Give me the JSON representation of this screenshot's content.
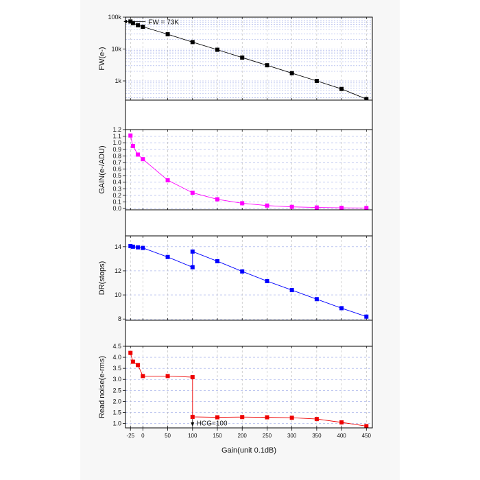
{
  "chart_data": [
    {
      "type": "line",
      "panel": "fw",
      "title": "",
      "xlabel": "Gain(unit 0.1dB)",
      "ylabel": "FW(e-)",
      "yscale": "log",
      "ylim": [
        250,
        100000
      ],
      "yticks": [
        1000,
        10000,
        100000
      ],
      "ytick_labels": [
        "1k",
        "10k",
        "100k"
      ],
      "grid": true,
      "color": "#000000",
      "x": [
        -25,
        -20,
        -10,
        0,
        50,
        100,
        150,
        200,
        250,
        300,
        350,
        400,
        450
      ],
      "y": [
        73000,
        65000,
        56000,
        50000,
        29000,
        16500,
        9500,
        5400,
        3100,
        1750,
        1000,
        560,
        270
      ],
      "annotation": {
        "text": "FW = 73K",
        "x": -25,
        "y": 73000
      }
    },
    {
      "type": "line",
      "panel": "gain",
      "title": "",
      "xlabel": "Gain(unit 0.1dB)",
      "ylabel": "GAIN(e-/ADU)",
      "ylim": [
        -0.02,
        1.2
      ],
      "yticks": [
        0.0,
        0.1,
        0.2,
        0.3,
        0.4,
        0.5,
        0.6,
        0.7,
        0.8,
        0.9,
        1.0,
        1.1,
        1.2
      ],
      "ytick_labels": [
        "0.0",
        "0.1",
        "0.2",
        "0.3",
        "0.4",
        "0.5",
        "0.6",
        "0.7",
        "0.8",
        "0.9",
        "1.0",
        "1.1",
        "1.2"
      ],
      "grid": true,
      "color": "#ff00ff",
      "x": [
        -25,
        -20,
        -10,
        0,
        50,
        100,
        150,
        200,
        250,
        300,
        350,
        400,
        450
      ],
      "y": [
        1.11,
        0.95,
        0.82,
        0.75,
        0.43,
        0.24,
        0.14,
        0.08,
        0.045,
        0.025,
        0.015,
        0.01,
        0.008
      ]
    },
    {
      "type": "line",
      "panel": "dr",
      "title": "",
      "xlabel": "Gain(unit 0.1dB)",
      "ylabel": "DR(stops)",
      "ylim": [
        7.9,
        14.9
      ],
      "yticks": [
        8,
        10,
        12,
        14
      ],
      "ytick_labels": [
        "8",
        "10",
        "12",
        "14"
      ],
      "grid": true,
      "color": "#0000ff",
      "x": [
        -25,
        -20,
        -10,
        0,
        50,
        100,
        100,
        150,
        200,
        250,
        300,
        350,
        400,
        450
      ],
      "y": [
        14.05,
        14.0,
        13.95,
        13.9,
        13.15,
        12.3,
        13.6,
        12.8,
        11.95,
        11.15,
        10.4,
        9.65,
        8.9,
        8.2
      ]
    },
    {
      "type": "line",
      "panel": "rn",
      "title": "",
      "xlabel": "Gain(unit 0.1dB)",
      "ylabel": "Read noise(e-rms)",
      "ylim": [
        0.8,
        4.5
      ],
      "yticks": [
        1.0,
        1.5,
        2.0,
        2.5,
        3.0,
        3.5,
        4.0,
        4.5
      ],
      "ytick_labels": [
        "1.0",
        "1.5",
        "2.0",
        "2.5",
        "3.0",
        "3.5",
        "4.0",
        "4.5"
      ],
      "grid": true,
      "color": "#ee0000",
      "x": [
        -25,
        -20,
        -10,
        0,
        50,
        100,
        100,
        150,
        200,
        250,
        300,
        350,
        400,
        450
      ],
      "y": [
        4.2,
        3.8,
        3.65,
        3.15,
        3.15,
        3.1,
        1.3,
        1.28,
        1.29,
        1.28,
        1.26,
        1.2,
        1.05,
        0.88
      ],
      "annotation": {
        "text": "HCG=100",
        "x": 100,
        "y": 1.0
      }
    }
  ],
  "x_axis": {
    "range": [
      -35,
      462
    ],
    "ticks": [
      -25,
      0,
      50,
      100,
      150,
      200,
      250,
      300,
      350,
      400,
      450
    ],
    "tick_labels": [
      "-25",
      "0",
      "50",
      "100",
      "150",
      "200",
      "250",
      "300",
      "350",
      "400",
      "450"
    ],
    "label": "Gain(unit 0.1dB)"
  }
}
